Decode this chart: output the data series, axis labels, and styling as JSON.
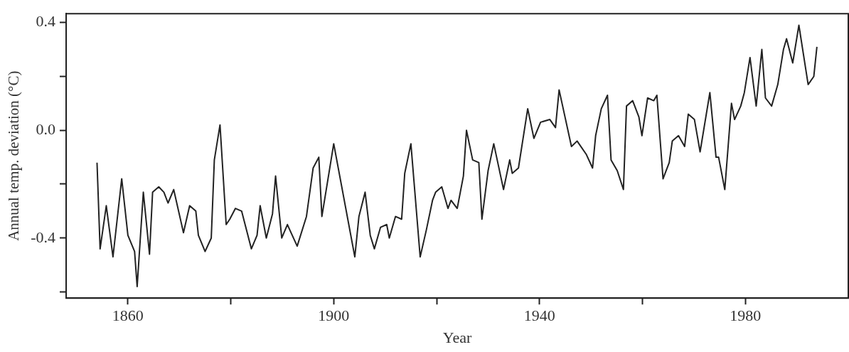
{
  "chart_data": {
    "type": "line",
    "xlabel": "Year",
    "ylabel": "Annual temp. deviation (°C)",
    "xlim": [
      1848,
      2000
    ],
    "ylim": [
      -0.623,
      0.433
    ],
    "xticks": [
      1860,
      {
        "value": 1880,
        "label": null
      },
      1900,
      {
        "value": 1920,
        "label": null
      },
      1940,
      {
        "value": 1960,
        "label": null
      },
      1980
    ],
    "yticks": [
      {
        "value": -0.6,
        "label": null
      },
      -0.4,
      {
        "value": -0.2,
        "label": null
      },
      {
        "value": 0,
        "label": "0.0"
      },
      {
        "value": 0.2,
        "label": null
      },
      0.4
    ],
    "marker": "none",
    "line_style": "solid",
    "legend": false,
    "series": [
      {
        "color": "#222222",
        "x": [
          1854.0,
          1854.6,
          1855.8,
          1857.1,
          1858.8,
          1860.0,
          1861.3,
          1861.8,
          1863.0,
          1864.2,
          1864.8,
          1866.0,
          1867.0,
          1867.8,
          1868.9,
          1870.8,
          1872.0,
          1873.2,
          1873.7,
          1875.0,
          1876.2,
          1876.8,
          1877.9,
          1879.1,
          1879.8,
          1880.9,
          1882.1,
          1884.0,
          1885.1,
          1885.7,
          1886.9,
          1888.1,
          1888.7,
          1889.9,
          1891.0,
          1891.7,
          1892.9,
          1894.7,
          1896.0,
          1897.1,
          1897.7,
          1900.0,
          1904.1,
          1904.9,
          1906.1,
          1907.1,
          1907.9,
          1909.1,
          1910.3,
          1910.8,
          1912.0,
          1913.2,
          1913.8,
          1915.0,
          1916.8,
          1918.0,
          1919.2,
          1919.8,
          1921.0,
          1922.2,
          1922.8,
          1924.0,
          1925.2,
          1925.8,
          1927.0,
          1928.2,
          1928.8,
          1930.0,
          1931.1,
          1933.0,
          1934.2,
          1934.7,
          1935.9,
          1937.7,
          1938.9,
          1940.2,
          1942.0,
          1943.1,
          1943.8,
          1946.2,
          1947.3,
          1949.1,
          1950.3,
          1950.9,
          1952.0,
          1953.2,
          1953.9,
          1955.1,
          1956.3,
          1956.9,
          1958.1,
          1959.3,
          1959.9,
          1961.0,
          1962.2,
          1962.8,
          1964.0,
          1965.2,
          1965.8,
          1967.0,
          1968.2,
          1968.9,
          1970.1,
          1971.2,
          1973.1,
          1974.3,
          1974.8,
          1976.0,
          1977.3,
          1977.9,
          1979.1,
          1979.8,
          1980.9,
          1982.1,
          1983.2,
          1983.9,
          1985.1,
          1986.3,
          1987.4,
          1988.0,
          1989.2,
          1990.4,
          1992.2,
          1993.3,
          1993.9
        ],
        "values": [
          -0.12,
          -0.44,
          -0.28,
          -0.47,
          -0.18,
          -0.39,
          -0.45,
          -0.58,
          -0.23,
          -0.46,
          -0.23,
          -0.21,
          -0.23,
          -0.27,
          -0.22,
          -0.38,
          -0.28,
          -0.3,
          -0.39,
          -0.45,
          -0.4,
          -0.11,
          0.02,
          -0.35,
          -0.33,
          -0.29,
          -0.3,
          -0.44,
          -0.39,
          -0.28,
          -0.4,
          -0.31,
          -0.17,
          -0.4,
          -0.35,
          -0.38,
          -0.43,
          -0.32,
          -0.14,
          -0.1,
          -0.32,
          -0.05,
          -0.47,
          -0.32,
          -0.23,
          -0.39,
          -0.44,
          -0.36,
          -0.35,
          -0.4,
          -0.32,
          -0.33,
          -0.16,
          -0.05,
          -0.47,
          -0.37,
          -0.26,
          -0.23,
          -0.21,
          -0.29,
          -0.26,
          -0.29,
          -0.17,
          0.0,
          -0.11,
          -0.12,
          -0.33,
          -0.15,
          -0.05,
          -0.22,
          -0.11,
          -0.16,
          -0.14,
          0.08,
          -0.03,
          0.03,
          0.04,
          0.01,
          0.15,
          -0.06,
          -0.04,
          -0.09,
          -0.14,
          -0.02,
          0.08,
          0.13,
          -0.11,
          -0.15,
          -0.22,
          0.09,
          0.11,
          0.05,
          -0.02,
          0.12,
          0.11,
          0.13,
          -0.18,
          -0.12,
          -0.04,
          -0.02,
          -0.06,
          0.06,
          0.04,
          -0.08,
          0.14,
          -0.1,
          -0.1,
          -0.22,
          0.1,
          0.04,
          0.09,
          0.14,
          0.27,
          0.09,
          0.3,
          0.12,
          0.09,
          0.17,
          0.3,
          0.34,
          0.25,
          0.39,
          0.17,
          0.2,
          0.31
        ]
      }
    ]
  }
}
